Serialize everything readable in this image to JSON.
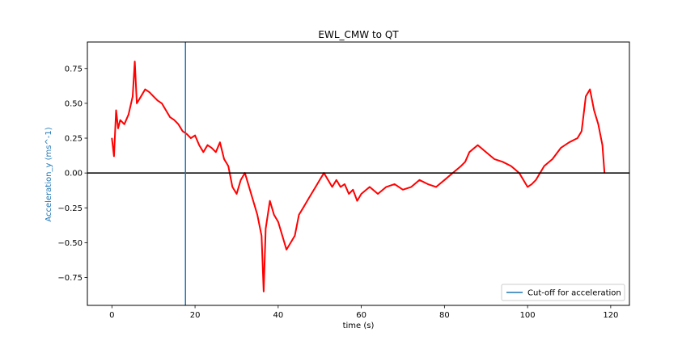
{
  "chart_data": {
    "type": "line",
    "title": "EWL_CMW to QT",
    "xlabel": "time (s)",
    "ylabel": "Acceleration_y (ms^-1)",
    "xlim": [
      -5.9,
      124.5
    ],
    "ylim": [
      -0.95,
      0.94
    ],
    "xticks": [
      0,
      20,
      40,
      60,
      80,
      100,
      120
    ],
    "xtick_labels": [
      "0",
      "20",
      "40",
      "60",
      "80",
      "100",
      "120"
    ],
    "yticks": [
      -0.75,
      -0.5,
      -0.25,
      0.0,
      0.25,
      0.5,
      0.75
    ],
    "ytick_labels": [
      "−0.75",
      "−0.50",
      "−0.25",
      "0.00",
      "0.25",
      "0.50",
      "0.75"
    ],
    "grid": false,
    "legend_position": "lower-right",
    "series": [
      {
        "color": "#ff0000",
        "x": [
          0.0,
          0.5,
          1,
          1.5,
          2,
          3,
          4,
          5,
          5.5,
          6,
          7,
          8,
          9,
          10,
          11,
          12,
          13,
          14,
          15,
          16,
          17,
          18,
          19,
          20,
          21,
          22,
          23,
          24,
          25,
          26,
          27,
          28,
          29,
          30,
          31,
          32,
          33,
          34,
          35,
          36,
          36.5,
          37,
          38,
          39,
          40,
          41,
          42,
          43,
          44,
          45,
          46,
          47,
          48,
          49,
          50,
          51,
          52,
          53,
          54,
          55,
          56,
          57,
          58,
          59,
          60,
          62,
          64,
          66,
          68,
          70,
          72,
          74,
          76,
          78,
          80,
          82,
          84,
          85,
          86,
          88,
          90,
          92,
          94,
          96,
          98,
          100,
          101,
          102,
          104,
          106,
          108,
          110,
          112,
          113,
          114,
          115,
          116,
          117,
          118,
          118.5
        ],
        "y": [
          0.25,
          0.12,
          0.45,
          0.32,
          0.38,
          0.35,
          0.42,
          0.55,
          0.8,
          0.5,
          0.55,
          0.6,
          0.58,
          0.55,
          0.52,
          0.5,
          0.45,
          0.4,
          0.38,
          0.35,
          0.3,
          0.28,
          0.25,
          0.27,
          0.2,
          0.15,
          0.2,
          0.18,
          0.15,
          0.22,
          0.1,
          0.05,
          -0.1,
          -0.15,
          -0.05,
          0.0,
          -0.1,
          -0.2,
          -0.3,
          -0.45,
          -0.85,
          -0.4,
          -0.2,
          -0.3,
          -0.35,
          -0.45,
          -0.55,
          -0.5,
          -0.45,
          -0.3,
          -0.25,
          -0.2,
          -0.15,
          -0.1,
          -0.05,
          0.0,
          -0.05,
          -0.1,
          -0.05,
          -0.1,
          -0.08,
          -0.15,
          -0.12,
          -0.2,
          -0.15,
          -0.1,
          -0.15,
          -0.1,
          -0.08,
          -0.12,
          -0.1,
          -0.05,
          -0.08,
          -0.1,
          -0.05,
          0.0,
          0.05,
          0.08,
          0.15,
          0.2,
          0.15,
          0.1,
          0.08,
          0.05,
          0.0,
          -0.1,
          -0.08,
          -0.05,
          0.05,
          0.1,
          0.18,
          0.22,
          0.25,
          0.3,
          0.55,
          0.6,
          0.45,
          0.35,
          0.2,
          0.0
        ]
      }
    ],
    "hlines": [
      {
        "y": 0.0,
        "color": "#000000"
      }
    ],
    "vlines": [
      {
        "x": 17.7,
        "color": "#1f77b4",
        "label": "Cut-off for acceleration"
      }
    ],
    "legend": [
      {
        "label": "Cut-off for acceleration",
        "color": "#1f77b4"
      }
    ]
  }
}
